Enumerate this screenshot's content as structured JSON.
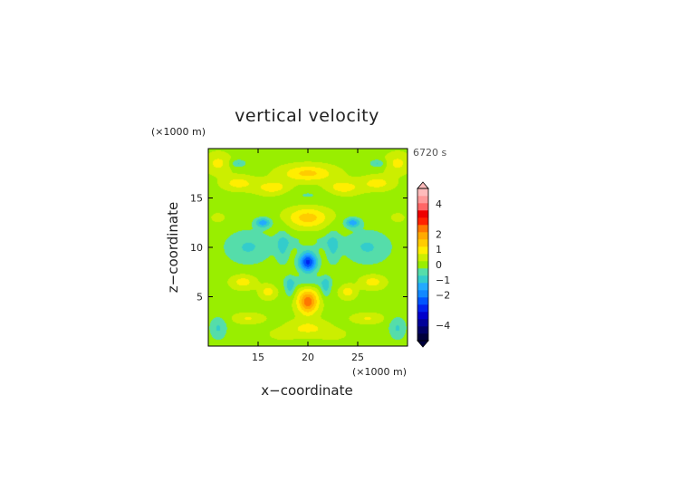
{
  "chart_data": {
    "type": "heatmap",
    "title": "vertical velocity",
    "xlabel": "x−coordinate",
    "ylabel": "z−coordinate",
    "x_unit": "(×1000 m)",
    "y_unit": "(×1000 m)",
    "time_label": "6720 s",
    "xlim": [
      10,
      30
    ],
    "ylim": [
      0,
      20
    ],
    "x_ticks": [
      "15",
      "20",
      "25"
    ],
    "y_ticks": [
      "5",
      "10",
      "15"
    ],
    "x_tick_values": [
      15,
      20,
      25
    ],
    "y_tick_values": [
      5,
      10,
      15
    ],
    "colorbar": {
      "levels": [
        -5,
        -4.5,
        -4,
        -3.5,
        -3,
        -2.5,
        -2,
        -1.5,
        -1,
        -0.5,
        0,
        0.5,
        1,
        1.5,
        2,
        2.5,
        3,
        3.5,
        4,
        4.5,
        5
      ],
      "colors": [
        "#00003c",
        "#000066",
        "#000099",
        "#0000cc",
        "#0022ee",
        "#0055ff",
        "#1188ff",
        "#22aaff",
        "#33cccc",
        "#55ddaa",
        "#99ee00",
        "#ccee00",
        "#ffee00",
        "#ffcc00",
        "#ffaa00",
        "#ff7700",
        "#ff2200",
        "#ee0000",
        "#ff6666",
        "#ff9999",
        "#ffbbbb"
      ],
      "tick_labels": [
        "4",
        "2",
        "1",
        "0",
        "−1",
        "−2",
        "−4"
      ],
      "tick_values": [
        4,
        2,
        1,
        0,
        -1,
        -2,
        -4
      ],
      "extend": "both"
    },
    "features": [
      {
        "x": 20.0,
        "z": 4.5,
        "w": 2.5,
        "sx": 1.0,
        "sz": 1.2
      },
      {
        "x": 20.0,
        "z": 8.5,
        "w": -3.0,
        "sx": 0.9,
        "sz": 1.0
      },
      {
        "x": 20.0,
        "z": 13.0,
        "w": 1.4,
        "sx": 2.0,
        "sz": 1.0
      },
      {
        "x": 20.0,
        "z": 17.5,
        "w": 1.3,
        "sx": 2.5,
        "sz": 0.8
      },
      {
        "x": 20.0,
        "z": 15.3,
        "w": -0.4,
        "sx": 4.0,
        "sz": 0.8
      },
      {
        "x": 20.0,
        "z": 1.8,
        "w": 0.8,
        "sx": 2.0,
        "sz": 0.8
      },
      {
        "x": 20.0,
        "z": 6.5,
        "w": -0.6,
        "sx": 2.5,
        "sz": 0.6
      },
      {
        "x": 20.0,
        "z": 10.5,
        "w": -0.6,
        "sx": 3.0,
        "sz": 0.7
      },
      {
        "x": 18.2,
        "z": 6.0,
        "w": -1.0,
        "sx": 0.5,
        "sz": 1.0
      },
      {
        "x": 21.8,
        "z": 6.0,
        "w": -1.0,
        "sx": 0.5,
        "sz": 1.0
      },
      {
        "x": 17.5,
        "z": 10.0,
        "w": -0.8,
        "sx": 0.7,
        "sz": 1.8
      },
      {
        "x": 22.5,
        "z": 10.0,
        "w": -0.8,
        "sx": 0.7,
        "sz": 1.8
      },
      {
        "x": 15.5,
        "z": 12.5,
        "w": -1.6,
        "sx": 0.8,
        "sz": 0.5
      },
      {
        "x": 24.5,
        "z": 12.5,
        "w": -1.6,
        "sx": 0.8,
        "sz": 0.5
      },
      {
        "x": 14.0,
        "z": 10.0,
        "w": -0.9,
        "sx": 2.5,
        "sz": 1.8
      },
      {
        "x": 26.0,
        "z": 10.0,
        "w": -0.9,
        "sx": 2.5,
        "sz": 1.8
      },
      {
        "x": 16.5,
        "z": 16.0,
        "w": 1.0,
        "sx": 1.8,
        "sz": 0.8
      },
      {
        "x": 23.5,
        "z": 16.0,
        "w": 1.0,
        "sx": 1.8,
        "sz": 0.8
      },
      {
        "x": 13.0,
        "z": 16.5,
        "w": 0.9,
        "sx": 1.5,
        "sz": 0.7
      },
      {
        "x": 27.0,
        "z": 16.5,
        "w": 0.9,
        "sx": 1.5,
        "sz": 0.7
      },
      {
        "x": 13.5,
        "z": 6.5,
        "w": 0.9,
        "sx": 1.2,
        "sz": 0.7
      },
      {
        "x": 26.5,
        "z": 6.5,
        "w": 0.9,
        "sx": 1.2,
        "sz": 0.7
      },
      {
        "x": 16.0,
        "z": 5.5,
        "w": 0.9,
        "sx": 0.8,
        "sz": 0.7
      },
      {
        "x": 24.0,
        "z": 5.5,
        "w": 0.9,
        "sx": 0.8,
        "sz": 0.7
      },
      {
        "x": 14.0,
        "z": 2.8,
        "w": 0.7,
        "sx": 1.5,
        "sz": 0.5
      },
      {
        "x": 26.0,
        "z": 2.8,
        "w": 0.7,
        "sx": 1.5,
        "sz": 0.5
      },
      {
        "x": 11.0,
        "z": 1.8,
        "w": -0.9,
        "sx": 0.9,
        "sz": 1.2
      },
      {
        "x": 29.0,
        "z": 1.8,
        "w": -0.9,
        "sx": 0.9,
        "sz": 1.2
      },
      {
        "x": 13.0,
        "z": 18.5,
        "w": -0.9,
        "sx": 0.8,
        "sz": 0.4
      },
      {
        "x": 27.0,
        "z": 18.5,
        "w": -0.9,
        "sx": 0.8,
        "sz": 0.4
      },
      {
        "x": 11.0,
        "z": 18.5,
        "w": 0.8,
        "sx": 1.2,
        "sz": 1.0
      },
      {
        "x": 29.0,
        "z": 18.5,
        "w": 0.8,
        "sx": 1.2,
        "sz": 1.0
      },
      {
        "x": 11.0,
        "z": 13.0,
        "w": 0.6,
        "sx": 0.6,
        "sz": 0.4
      },
      {
        "x": 29.0,
        "z": 13.0,
        "w": 0.6,
        "sx": 0.6,
        "sz": 0.4
      },
      {
        "x": 20.0,
        "z": 10.5,
        "w": 0.6,
        "sx": 0.9,
        "sz": 0.4
      },
      {
        "x": 17.5,
        "z": 1.2,
        "w": 0.5,
        "sx": 1.2,
        "sz": 0.5
      },
      {
        "x": 22.5,
        "z": 1.2,
        "w": 0.5,
        "sx": 1.2,
        "sz": 0.5
      }
    ],
    "background_value": 0.35,
    "grid": false
  }
}
